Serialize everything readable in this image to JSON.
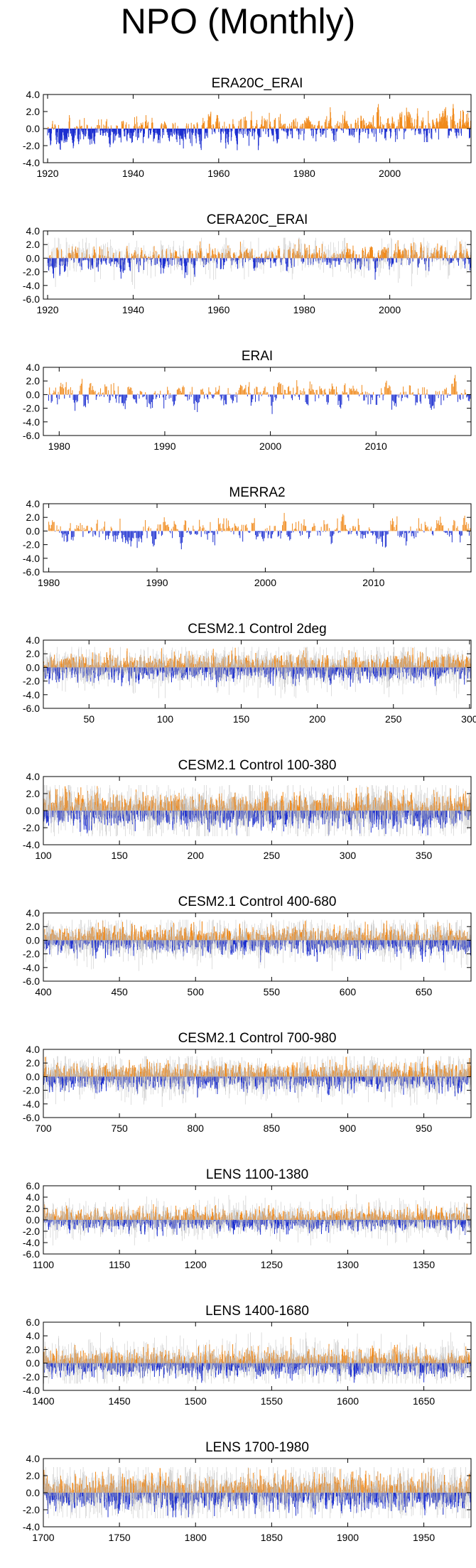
{
  "page_title": "NPO (Monthly)",
  "colors": {
    "positive": "#f08a1c",
    "negative": "#1c2fd0",
    "background_lines": "#bdbdbd"
  },
  "chart_data": [
    {
      "type": "bar",
      "title": "ERA20C_ERAI",
      "ylim": [
        -4,
        4
      ],
      "yticks": [
        "4.0",
        "2.0",
        "0.0",
        "-2.0",
        "-4.0"
      ],
      "xlim": [
        1919,
        2019
      ],
      "xticks": [
        1920,
        1940,
        1960,
        1980,
        2000
      ],
      "series_start": 1920,
      "series_end": 2018,
      "months_per_unit": 12,
      "amplitude": 1.1,
      "background_lines": false,
      "trend": 0.6,
      "seed": 11
    },
    {
      "type": "bar",
      "title": "CERA20C_ERAI",
      "ylim": [
        -6,
        4
      ],
      "yticks": [
        "4.0",
        "2.0",
        "0.0",
        "-2.0",
        "-4.0",
        "-6.0"
      ],
      "xlim": [
        1919,
        2019
      ],
      "xticks": [
        1920,
        1940,
        1960,
        1980,
        2000
      ],
      "series_start": 1920,
      "series_end": 2018,
      "months_per_unit": 12,
      "amplitude": 1.2,
      "background_lines": true,
      "trend": 0.3,
      "seed": 23
    },
    {
      "type": "bar",
      "title": "ERAI",
      "ylim": [
        -6,
        4
      ],
      "yticks": [
        "4.0",
        "2.0",
        "0.0",
        "-2.0",
        "-4.0",
        "-6.0"
      ],
      "xlim": [
        1978.5,
        2019
      ],
      "xticks": [
        1980,
        1990,
        2000,
        2010
      ],
      "series_start": 1979,
      "series_end": 2018,
      "months_per_unit": 12,
      "amplitude": 1.3,
      "background_lines": false,
      "trend": 0,
      "seed": 37
    },
    {
      "type": "bar",
      "title": "MERRA2",
      "ylim": [
        -6,
        4
      ],
      "yticks": [
        "4.0",
        "2.0",
        "0.0",
        "-2.0",
        "-4.0",
        "-6.0"
      ],
      "xlim": [
        1979.5,
        2019
      ],
      "xticks": [
        1980,
        1990,
        2000,
        2010
      ],
      "series_start": 1980,
      "series_end": 2018,
      "months_per_unit": 12,
      "amplitude": 1.3,
      "background_lines": false,
      "trend": 0,
      "seed": 41
    },
    {
      "type": "bar",
      "title": "CESM2.1 Control 2deg",
      "ylim": [
        -6,
        4
      ],
      "yticks": [
        "4.0",
        "2.0",
        "0.0",
        "-2.0",
        "-4.0",
        "-6.0"
      ],
      "xlim": [
        20,
        301
      ],
      "xticks": [
        50,
        100,
        150,
        200,
        250,
        300
      ],
      "series_start": 20,
      "series_end": 300,
      "months_per_unit": 12,
      "amplitude": 1.2,
      "background_lines": true,
      "trend": 0,
      "seed": 53
    },
    {
      "type": "bar",
      "title": "CESM2.1 Control 100-380",
      "ylim": [
        -4,
        4
      ],
      "yticks": [
        "4.0",
        "2.0",
        "0.0",
        "-2.0",
        "-4.0"
      ],
      "xlim": [
        100,
        381
      ],
      "xticks": [
        100,
        150,
        200,
        250,
        300,
        350
      ],
      "series_start": 100,
      "series_end": 380,
      "months_per_unit": 12,
      "amplitude": 1.2,
      "background_lines": true,
      "trend": 0,
      "seed": 67
    },
    {
      "type": "bar",
      "title": "CESM2.1 Control 400-680",
      "ylim": [
        -6,
        4
      ],
      "yticks": [
        "4.0",
        "2.0",
        "0.0",
        "-2.0",
        "-4.0",
        "-6.0"
      ],
      "xlim": [
        400,
        681
      ],
      "xticks": [
        400,
        450,
        500,
        550,
        600,
        650
      ],
      "series_start": 400,
      "series_end": 680,
      "months_per_unit": 12,
      "amplitude": 1.2,
      "background_lines": true,
      "trend": 0,
      "seed": 71
    },
    {
      "type": "bar",
      "title": "CESM2.1 Control 700-980",
      "ylim": [
        -6,
        4
      ],
      "yticks": [
        "4.0",
        "2.0",
        "0.0",
        "-2.0",
        "-4.0",
        "-6.0"
      ],
      "xlim": [
        700,
        981
      ],
      "xticks": [
        700,
        750,
        800,
        850,
        900,
        950
      ],
      "series_start": 700,
      "series_end": 980,
      "months_per_unit": 12,
      "amplitude": 1.2,
      "background_lines": true,
      "trend": 0,
      "seed": 83
    },
    {
      "type": "bar",
      "title": "LENS 1100-1380",
      "ylim": [
        -6,
        6
      ],
      "yticks": [
        "6.0",
        "4.0",
        "2.0",
        "0.0",
        "-2.0",
        "-4.0",
        "-6.0"
      ],
      "xlim": [
        1100,
        1381
      ],
      "xticks": [
        1100,
        1150,
        1200,
        1250,
        1300,
        1350
      ],
      "series_start": 1100,
      "series_end": 1380,
      "months_per_unit": 12,
      "amplitude": 1.2,
      "background_lines": true,
      "trend": 0,
      "seed": 97
    },
    {
      "type": "bar",
      "title": "LENS 1400-1680",
      "ylim": [
        -4,
        6
      ],
      "yticks": [
        "6.0",
        "4.0",
        "2.0",
        "0.0",
        "-2.0",
        "-4.0"
      ],
      "xlim": [
        1400,
        1681
      ],
      "xticks": [
        1400,
        1450,
        1500,
        1550,
        1600,
        1650
      ],
      "series_start": 1400,
      "series_end": 1680,
      "months_per_unit": 12,
      "amplitude": 1.2,
      "background_lines": true,
      "trend": 0,
      "seed": 101
    },
    {
      "type": "bar",
      "title": "LENS 1700-1980",
      "ylim": [
        -4,
        4
      ],
      "yticks": [
        "4.0",
        "2.0",
        "0.0",
        "-2.0",
        "-4.0"
      ],
      "xlim": [
        1700,
        1981
      ],
      "xticks": [
        1700,
        1750,
        1800,
        1850,
        1900,
        1950
      ],
      "series_start": 1700,
      "series_end": 1980,
      "months_per_unit": 12,
      "amplitude": 1.2,
      "background_lines": true,
      "trend": 0,
      "seed": 113
    }
  ]
}
